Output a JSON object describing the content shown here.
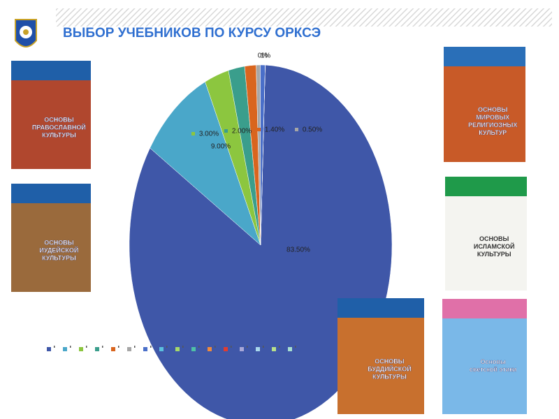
{
  "header": {
    "title": "ВЫБОР УЧЕБНИКОВ ПО КУРСУ ОРКСЭ"
  },
  "chart_data": {
    "type": "pie",
    "categories": [
      null,
      null,
      null,
      null,
      null,
      null,
      null,
      null
    ],
    "values": [
      83.5,
      9,
      3,
      2,
      1.4,
      0.5,
      0.6,
      0
    ],
    "value_labels": [
      "83.50%",
      "9.00%",
      "3.00%",
      "2.00%",
      "1.40%",
      "0.50%",
      "1%",
      "0%"
    ],
    "colors": [
      "#3f57a8",
      "#4aa7c9",
      "#8cc63f",
      "#3a9e8c",
      "#d9651e",
      "#a6a6a6",
      "#4a6fc9",
      "#5bc0de"
    ]
  },
  "books": [
    {
      "title_lines": [
        "ОСНОВЫ",
        "ПРАВОСЛАВНОЙ",
        "КУЛЬТУРЫ"
      ]
    },
    {
      "title_lines": [
        "ОСНОВЫ",
        "ИУДЕЙСКОЙ",
        "КУЛЬТУРЫ"
      ]
    },
    {
      "title_lines": [
        "ОСНОВЫ",
        "МИРОВЫХ",
        "РЕЛИГИОЗНЫХ",
        "КУЛЬТУР"
      ]
    },
    {
      "title_lines": [
        "ОСНОВЫ",
        "ИСЛАМСКОЙ",
        "КУЛЬТУРЫ"
      ]
    },
    {
      "title_lines": [
        "ОСНОВЫ",
        "БУДДИЙСКОЙ",
        "КУЛЬТУРЫ"
      ]
    },
    {
      "title_lines": [
        "Основы",
        "светской этики"
      ]
    }
  ]
}
